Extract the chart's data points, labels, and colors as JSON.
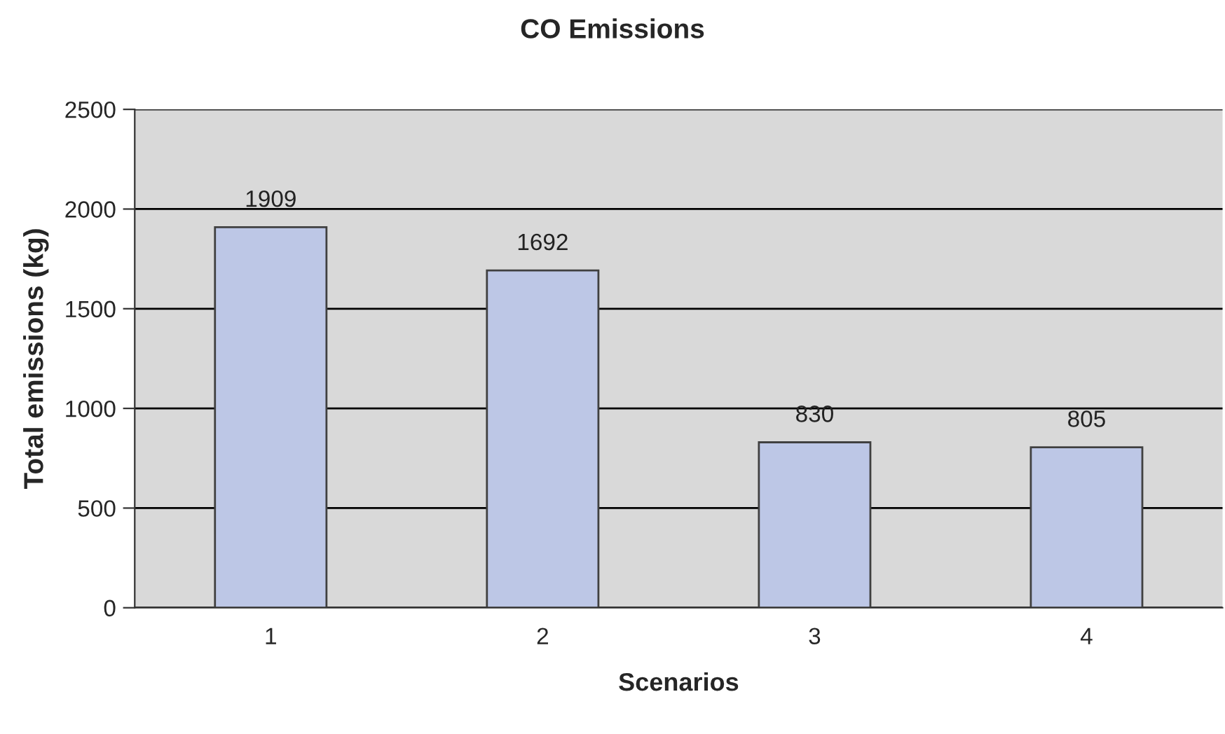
{
  "chart_data": {
    "type": "bar",
    "title": "CO Emissions",
    "xlabel": "Scenarios",
    "ylabel": "Total emissions (kg)",
    "categories": [
      "1",
      "2",
      "3",
      "4"
    ],
    "values": [
      1909,
      1692,
      830,
      805
    ],
    "color": "#bdc7e6",
    "ylim": [
      0,
      2500
    ],
    "yticks": [
      0,
      500,
      1000,
      1500,
      2000,
      2500
    ],
    "grid": "y",
    "data_labels": true
  }
}
